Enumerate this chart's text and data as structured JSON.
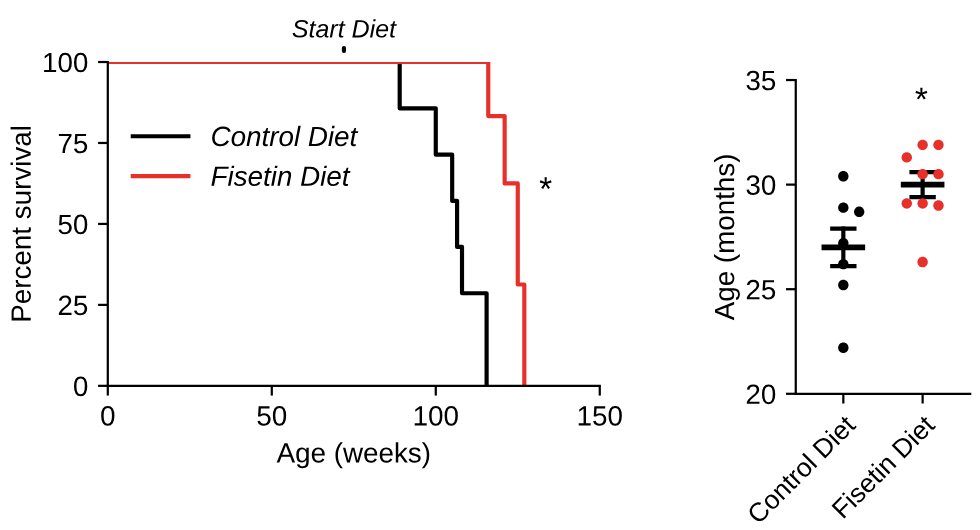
{
  "chart_data": [
    {
      "type": "step",
      "xlabel": "Age (weeks)",
      "ylabel": "Percent survival",
      "xlim": [
        0,
        150
      ],
      "xticks": [
        0,
        50,
        100,
        150
      ],
      "ylim": [
        0,
        100
      ],
      "yticks": [
        0,
        25,
        50,
        75,
        100
      ],
      "legend": "top left",
      "grid": false,
      "series": [
        {
          "name": "Control Diet",
          "color": "#000000",
          "x": [
            0,
            89,
            100,
            105,
            106.5,
            108,
            115.5
          ],
          "values": [
            100,
            85.7,
            71.4,
            57.1,
            42.9,
            28.6,
            0
          ]
        },
        {
          "name": "Fisetin Diet",
          "color": "#e8302a",
          "x": [
            0,
            116,
            121,
            125,
            127
          ],
          "values": [
            100,
            83.3,
            62.5,
            31.3,
            0
          ]
        }
      ],
      "annotations": [
        {
          "text": "Start Diet",
          "x": 72,
          "y": 100
        },
        "*"
      ]
    },
    {
      "type": "scatter",
      "ylabel": "Age (months)",
      "categories": [
        "Control Diet",
        "Fisetin Diet"
      ],
      "ylim": [
        20,
        35
      ],
      "yticks": [
        20,
        25,
        30,
        35
      ],
      "grid": false,
      "series": [
        {
          "color": "#000000",
          "marker": "circle",
          "x": [
            "Control Diet",
            "Control Diet",
            "Control Diet",
            "Control Diet",
            "Control Diet",
            "Control Diet",
            "Control Diet"
          ],
          "values": [
            30.4,
            28.9,
            28.7,
            27.2,
            26.2,
            25.2,
            22.2
          ]
        },
        {
          "color": "#e8302a",
          "marker": "circle",
          "x": [
            "Fisetin Diet",
            "Fisetin Diet",
            "Fisetin Diet",
            "Fisetin Diet",
            "Fisetin Diet",
            "Fisetin Diet",
            "Fisetin Diet",
            "Fisetin Diet",
            "Fisetin Diet"
          ],
          "values": [
            31.9,
            31.9,
            31.3,
            30.5,
            30.5,
            29.1,
            29.0,
            29.1,
            26.3
          ]
        },
        {
          "type": "box",
          "color": "#000000",
          "boxes": [
            {
              "low": 26.1,
              "q1": 27,
              "median": 27,
              "q3": 27,
              "high": 27.9
            },
            {
              "low": 29.4,
              "q1": 30,
              "median": 30,
              "q3": 30,
              "high": 30.6
            }
          ]
        }
      ],
      "annotations": [
        "*"
      ]
    }
  ]
}
